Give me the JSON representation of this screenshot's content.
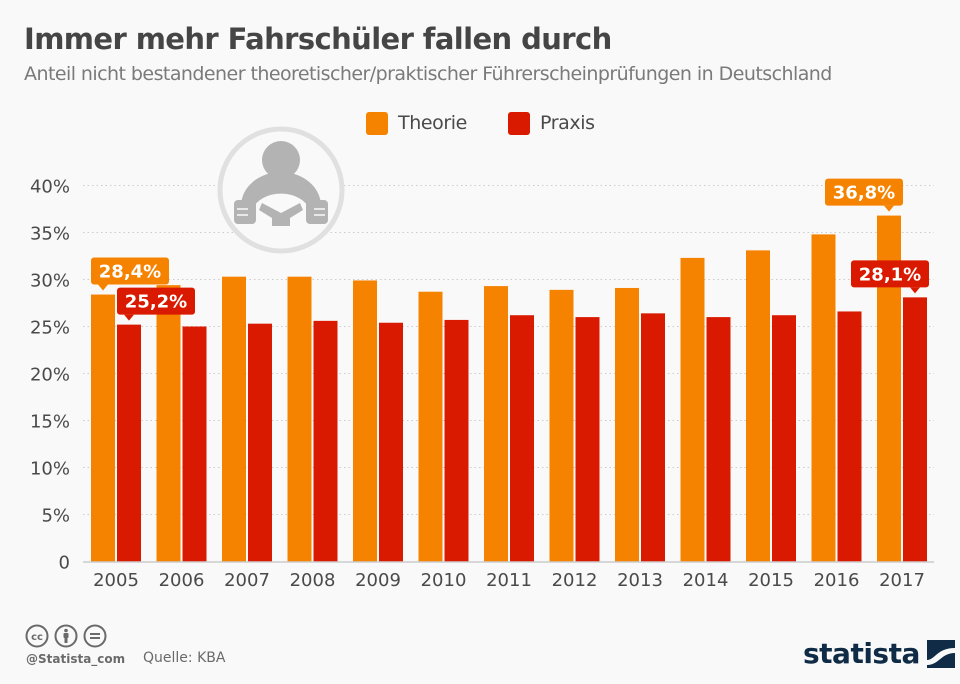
{
  "header": {
    "title": "Immer mehr Fahrschüler fallen durch",
    "subtitle": "Anteil nicht bestandener theoretischer/praktischer Führerscheinprüfungen in Deutschland"
  },
  "colors": {
    "theorie": "#f68300",
    "praxis": "#d91a00",
    "grid": "#cccccc",
    "axis": "#cccccc",
    "icon": "#b3b3b3",
    "icon_ring": "#e0e0e0",
    "brand": "#0f2b46"
  },
  "icons": {
    "illustration": "driver-steering-wheel-icon",
    "license": [
      "creative-commons-icon",
      "attribution-icon",
      "no-derivatives-icon"
    ],
    "brand_mark": "statista-logo-mark"
  },
  "chart_data": {
    "type": "bar",
    "title": "Immer mehr Fahrschüler fallen durch",
    "subtitle": "Anteil nicht bestandener theoretischer/praktischer Führerscheinprüfungen in Deutschland",
    "xlabel": "",
    "ylabel": "",
    "categories": [
      "2005",
      "2006",
      "2007",
      "2008",
      "2009",
      "2010",
      "2011",
      "2012",
      "2013",
      "2014",
      "2015",
      "2016",
      "2017"
    ],
    "series": [
      {
        "name": "Theorie",
        "values": [
          28.4,
          29.4,
          30.3,
          30.3,
          29.9,
          28.7,
          29.3,
          28.9,
          29.1,
          32.3,
          33.1,
          34.8,
          36.8
        ]
      },
      {
        "name": "Praxis",
        "values": [
          25.2,
          25.0,
          25.3,
          25.6,
          25.4,
          25.7,
          26.2,
          26.0,
          26.4,
          26.0,
          26.2,
          26.6,
          28.1
        ]
      }
    ],
    "ylim": [
      0,
      40
    ],
    "yticks": [
      0,
      5,
      10,
      15,
      20,
      25,
      30,
      35,
      40
    ],
    "ytick_labels": [
      "0",
      "5%",
      "10%",
      "15%",
      "20%",
      "25%",
      "30%",
      "35%",
      "40%"
    ],
    "grid": true,
    "legend": {
      "position": "top-center",
      "entries": [
        "Theorie",
        "Praxis"
      ]
    },
    "annotations": [
      {
        "series": "Theorie",
        "category": "2005",
        "text": "28,4%"
      },
      {
        "series": "Praxis",
        "category": "2005",
        "text": "25,2%"
      },
      {
        "series": "Theorie",
        "category": "2017",
        "text": "36,8%"
      },
      {
        "series": "Praxis",
        "category": "2017",
        "text": "28,1%"
      }
    ]
  },
  "footer": {
    "handle": "@Statista_com",
    "source": "Quelle: KBA",
    "brand": "statista"
  }
}
